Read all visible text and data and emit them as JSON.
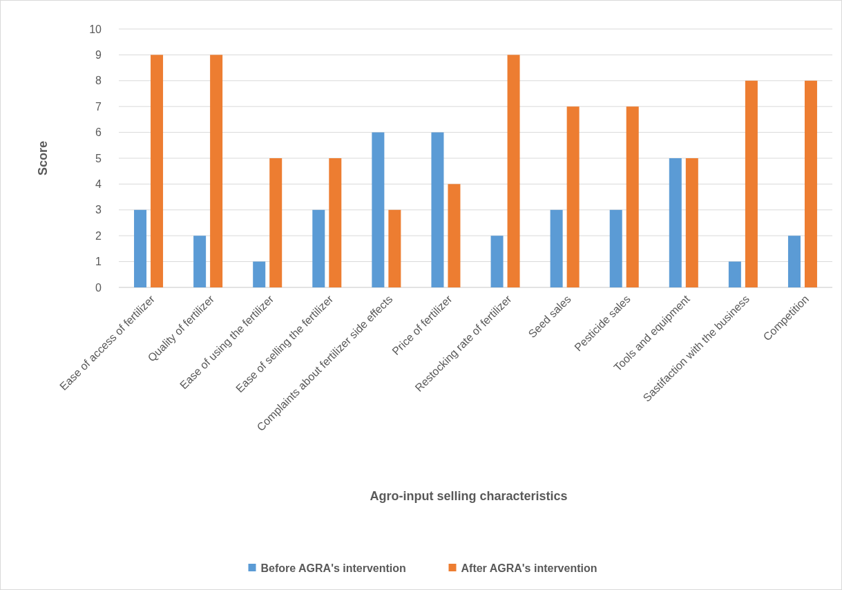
{
  "chart_data": {
    "type": "bar",
    "xlabel": "Agro-input selling characteristics",
    "ylabel": "Score",
    "categories": [
      "Ease of access of fertilizer",
      "Quality of fertilizer",
      "Ease of using the fertilizer",
      "Ease of selling the fertilizer",
      "Complaints about fertilizer side effects",
      "Price of fertilizer",
      "Restocking rate of fertilizer",
      "Seed sales",
      "Pesticide sales",
      "Tools and equipment",
      "Sastifaction with the business",
      "Competition"
    ],
    "series": [
      {
        "name": "Before AGRA's intervention",
        "color": "#5b9bd5",
        "values": [
          3,
          2,
          1,
          3,
          6,
          6,
          2,
          3,
          3,
          5,
          1,
          2
        ]
      },
      {
        "name": "After AGRA's intervention",
        "color": "#ed7d31",
        "values": [
          9,
          9,
          5,
          5,
          3,
          4,
          9,
          7,
          7,
          5,
          8,
          8
        ]
      }
    ],
    "ylim": [
      0,
      10
    ],
    "yticks": [
      0,
      1,
      2,
      3,
      4,
      5,
      6,
      7,
      8,
      9,
      10
    ],
    "grid": "y",
    "legend": "bottom"
  }
}
